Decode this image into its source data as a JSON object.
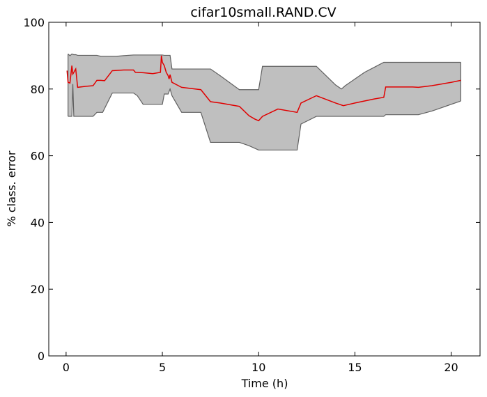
{
  "chart_data": {
    "type": "area",
    "title": "cifar10small.RAND.CV",
    "xlabel": "Time (h)",
    "ylabel": "% class. error",
    "xlim": [
      -0.9,
      21.5
    ],
    "ylim": [
      0,
      100
    ],
    "xticks": [
      0,
      5,
      10,
      15,
      20
    ],
    "yticks": [
      0,
      20,
      40,
      60,
      80,
      100
    ],
    "xtick_labels": [
      "0",
      "5",
      "10",
      "15",
      "20"
    ],
    "ytick_labels": [
      "0",
      "20",
      "40",
      "60",
      "80",
      "100"
    ],
    "grid": false,
    "colors": {
      "band_fill": "#bfbfbf",
      "band_edge": "#606060",
      "mean_line": "#e00000"
    },
    "series": [
      {
        "role": "upper",
        "x": [
          0.1,
          0.2,
          0.3,
          0.4,
          0.5,
          0.6,
          0.8,
          1.0,
          1.2,
          1.4,
          1.6,
          1.8,
          2.0,
          2.2,
          2.4,
          2.6,
          3.0,
          3.5,
          3.8,
          4.0,
          4.4,
          4.9,
          5.0,
          5.1,
          5.2,
          5.3,
          5.4,
          5.5,
          6.0,
          7.0,
          7.5,
          8.0,
          9.0,
          9.5,
          10.0,
          10.2,
          10.5,
          11.0,
          12.0,
          13.0,
          14.0,
          14.3,
          14.5,
          15.5,
          16.0,
          16.5,
          17.0,
          18.0,
          19.0,
          19.5,
          20.0,
          20.5
        ],
        "y": [
          90.5,
          90.0,
          90.5,
          90.3,
          90.3,
          90.1,
          90.1,
          90.1,
          90.1,
          90.1,
          90.1,
          89.8,
          89.8,
          89.8,
          89.8,
          89.8,
          90.0,
          90.2,
          90.2,
          90.2,
          90.2,
          90.2,
          90.2,
          90.1,
          90.1,
          90.1,
          90.1,
          86.0,
          86.0,
          86.0,
          86.0,
          84.0,
          79.8,
          79.8,
          79.8,
          86.8,
          86.8,
          86.8,
          86.8,
          86.8,
          81.2,
          80.0,
          81.0,
          85.0,
          86.5,
          88.0,
          88.0,
          88.0,
          88.0,
          88.0,
          88.0,
          88.0
        ]
      },
      {
        "role": "lower",
        "x": [
          0.1,
          0.2,
          0.3,
          0.35,
          0.4,
          0.5,
          0.6,
          1.0,
          1.4,
          1.6,
          1.9,
          2.2,
          2.4,
          3.5,
          3.7,
          4.0,
          4.5,
          4.9,
          5.0,
          5.1,
          5.3,
          5.4,
          5.5,
          6.0,
          7.0,
          7.5,
          8.0,
          9.0,
          9.5,
          10.0,
          11.0,
          12.0,
          12.2,
          13.0,
          14.0,
          15.0,
          16.0,
          16.5,
          16.6,
          17.0,
          18.0,
          18.3,
          19.0,
          20.0,
          20.5
        ],
        "y": [
          71.8,
          71.8,
          71.8,
          81.5,
          71.8,
          71.8,
          71.8,
          71.8,
          71.8,
          73.0,
          73.0,
          76.5,
          78.8,
          78.8,
          78.0,
          75.4,
          75.4,
          75.4,
          75.4,
          78.5,
          78.5,
          80.0,
          78.0,
          73.0,
          73.0,
          64.0,
          64.0,
          64.0,
          63.0,
          61.7,
          61.7,
          61.7,
          69.5,
          71.8,
          71.8,
          71.8,
          71.8,
          71.8,
          72.3,
          72.3,
          72.3,
          72.3,
          73.4,
          75.4,
          76.4
        ]
      },
      {
        "role": "mean",
        "x": [
          0.05,
          0.1,
          0.2,
          0.3,
          0.35,
          0.4,
          0.5,
          0.6,
          1.0,
          1.4,
          1.6,
          1.8,
          2.0,
          2.4,
          3.0,
          3.5,
          3.6,
          4.0,
          4.5,
          4.9,
          4.95,
          5.0,
          5.1,
          5.2,
          5.3,
          5.35,
          5.4,
          5.5,
          6.0,
          7.0,
          7.5,
          8.0,
          9.0,
          9.5,
          9.8,
          10.0,
          10.2,
          11.0,
          12.0,
          12.2,
          13.0,
          14.0,
          14.4,
          15.0,
          16.0,
          16.5,
          16.6,
          17.0,
          18.0,
          18.3,
          19.0,
          20.0,
          20.5
        ],
        "y": [
          85.5,
          82.0,
          81.8,
          87.0,
          84.5,
          85.0,
          86.0,
          80.5,
          80.8,
          81.0,
          82.6,
          82.6,
          82.5,
          85.5,
          85.7,
          85.7,
          85.0,
          84.9,
          84.6,
          85.0,
          90.0,
          88.0,
          87.0,
          85.0,
          84.0,
          83.0,
          84.3,
          82.0,
          80.5,
          79.8,
          76.2,
          75.8,
          74.8,
          72.0,
          71.0,
          70.5,
          71.8,
          74.0,
          73.0,
          75.8,
          78.0,
          75.8,
          75.0,
          75.8,
          77.0,
          77.5,
          80.6,
          80.6,
          80.6,
          80.5,
          81.0,
          82.0,
          82.6
        ]
      }
    ]
  }
}
